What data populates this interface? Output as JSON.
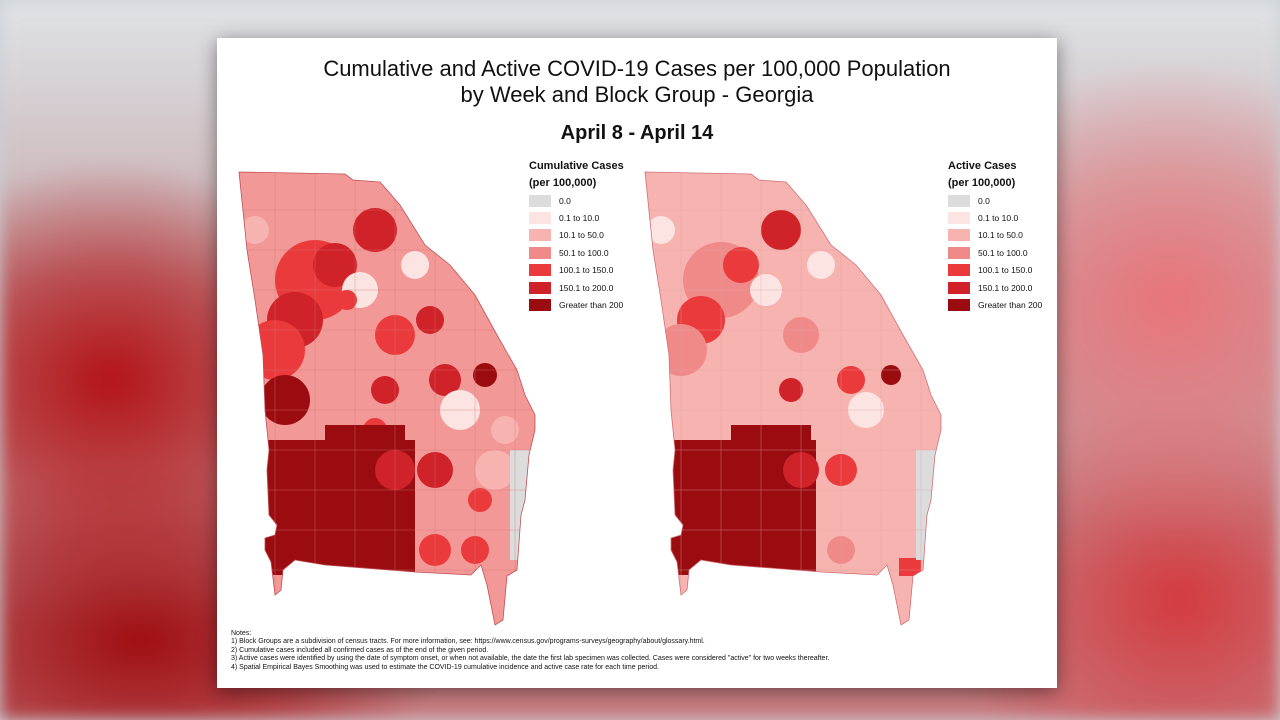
{
  "figure": {
    "title_line1": "Cumulative and Active COVID-19 Cases per 100,000 Population",
    "title_line2": "by Week and Block Group - Georgia",
    "period": "April 8 - April 14"
  },
  "legend_classes": [
    {
      "label": "0.0",
      "color": "#dcdcdc"
    },
    {
      "label": "0.1 to 10.0",
      "color": "#fce4e2"
    },
    {
      "label": "10.1 to 50.0",
      "color": "#f7b3b0"
    },
    {
      "label": "50.1 to 100.0",
      "color": "#f08a89"
    },
    {
      "label": "100.1 to 150.0",
      "color": "#ea3a3c"
    },
    {
      "label": "150.1 to 200.0",
      "color": "#cf2229"
    },
    {
      "label": "Greater than 200",
      "color": "#9a0c10"
    }
  ],
  "maps": {
    "cumulative": {
      "legend_title": "Cumulative Cases",
      "legend_subtitle": "(per 100,000)"
    },
    "active": {
      "legend_title": "Active Cases",
      "legend_subtitle": "(per 100,000)"
    }
  },
  "notes": {
    "heading": "Notes:",
    "items": [
      "1) Block Groups are a subdivision of census tracts. For more information, see: https://www.census.gov/programs-surveys/geography/about/glossary.html.",
      "2) Cumulative cases included all confirmed cases as of the end of the given period.",
      "3) Active cases were identified by using the date of symptom onset, or when not available, the date the first lab specimen was collected. Cases were considered \"active\" for two weeks thereafter.",
      "4) Spatial Empirical Bayes Smoothing was used to estimate the COVID-19 cumulative incidence and active case rate for each time period."
    ]
  }
}
